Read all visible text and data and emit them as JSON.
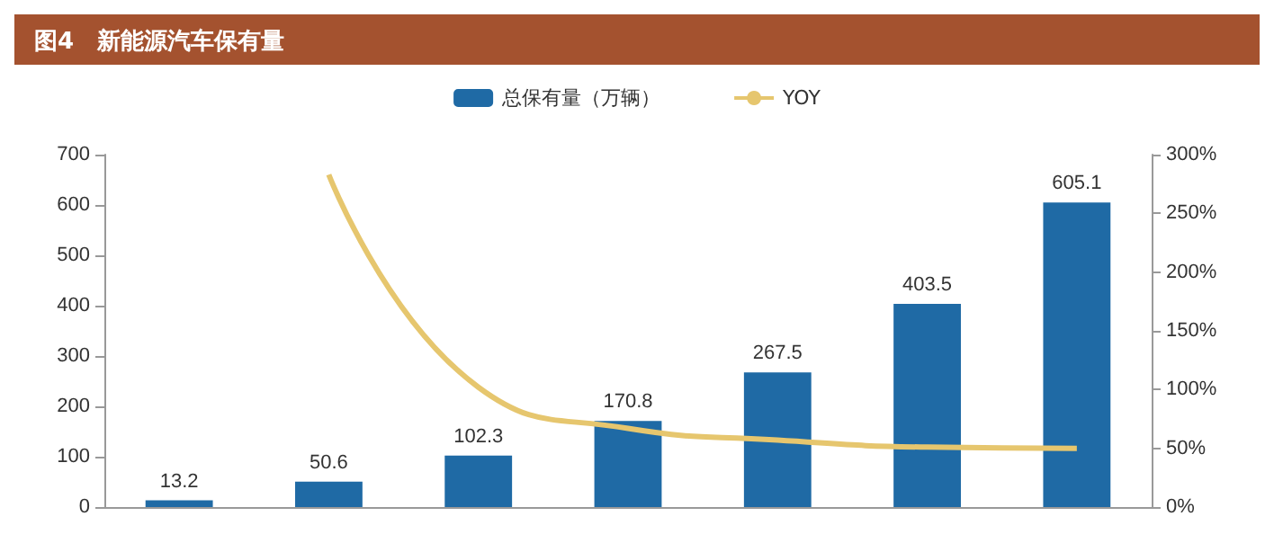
{
  "chart_data": {
    "type": "bar",
    "title": "图4　新能源汽车保有量",
    "categories": [
      null,
      null,
      null,
      null,
      null,
      null,
      null
    ],
    "series": [
      {
        "name": "总保有量（万辆）",
        "color": "#1f6aa5",
        "values": [
          13.2,
          50.6,
          102.3,
          170.8,
          267.5,
          403.5,
          605.1
        ],
        "value_labels": [
          "13.2",
          "50.6",
          "102.3",
          "170.8",
          "267.5",
          "403.5",
          "605.1"
        ]
      },
      {
        "name": "YOY",
        "type": "line",
        "axis": "y2",
        "color": "#e6c66e",
        "values": [
          null,
          283,
          102,
          67,
          57,
          51,
          50
        ]
      }
    ],
    "ylim": [
      0,
      700
    ],
    "yticks": [
      0,
      100,
      200,
      300,
      400,
      500,
      600,
      700
    ],
    "y2lim": [
      0,
      300
    ],
    "y2ticks": [
      {
        "value": 0,
        "label": "0%"
      },
      {
        "value": 50,
        "label": "50%"
      },
      {
        "value": 100,
        "label": "100%"
      },
      {
        "value": 150,
        "label": "150%"
      },
      {
        "value": 200,
        "label": "200%"
      },
      {
        "value": 250,
        "label": "250%"
      },
      {
        "value": 300,
        "label": "300%"
      }
    ],
    "grid": false,
    "legend": "top"
  }
}
